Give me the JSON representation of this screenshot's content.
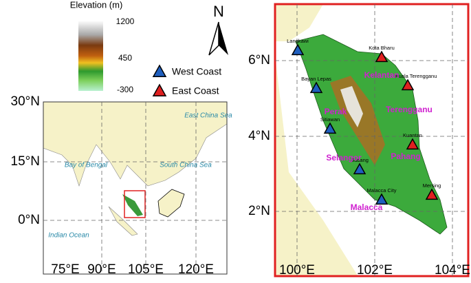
{
  "colorbar": {
    "title": "Elevation (m)",
    "labels": [
      "1200",
      "450",
      "-300"
    ]
  },
  "north_arrow": "N",
  "legend": [
    {
      "label": "West Coast",
      "color": "#1f5fbf",
      "stations": [
        "Langkawi",
        "Bayan Lepas",
        "Sitiawan",
        "Subang",
        "Malacca City"
      ]
    },
    {
      "label": "East Coast",
      "color": "#e02020",
      "stations": [
        "Kota Bharu",
        "Kuala Terengganu",
        "Kuantan",
        "Mersing"
      ]
    }
  ],
  "overview_map": {
    "lat_labels": [
      "30°N",
      "15°N",
      "0°N"
    ],
    "lon_labels": [
      "75°E",
      "90°E",
      "105°E",
      "120°E"
    ],
    "places": [
      "East China Sea",
      "Bay of Bengal",
      "South China Sea",
      "Indian Ocean"
    ]
  },
  "detail_map": {
    "lat_labels": [
      "6°N",
      "4°N",
      "2°N"
    ],
    "lon_labels": [
      "100°E",
      "102°E",
      "104°E"
    ],
    "states": [
      "Kelantan",
      "Terengganu",
      "Perak",
      "Selangor",
      "Pahang",
      "Malacca"
    ]
  }
}
